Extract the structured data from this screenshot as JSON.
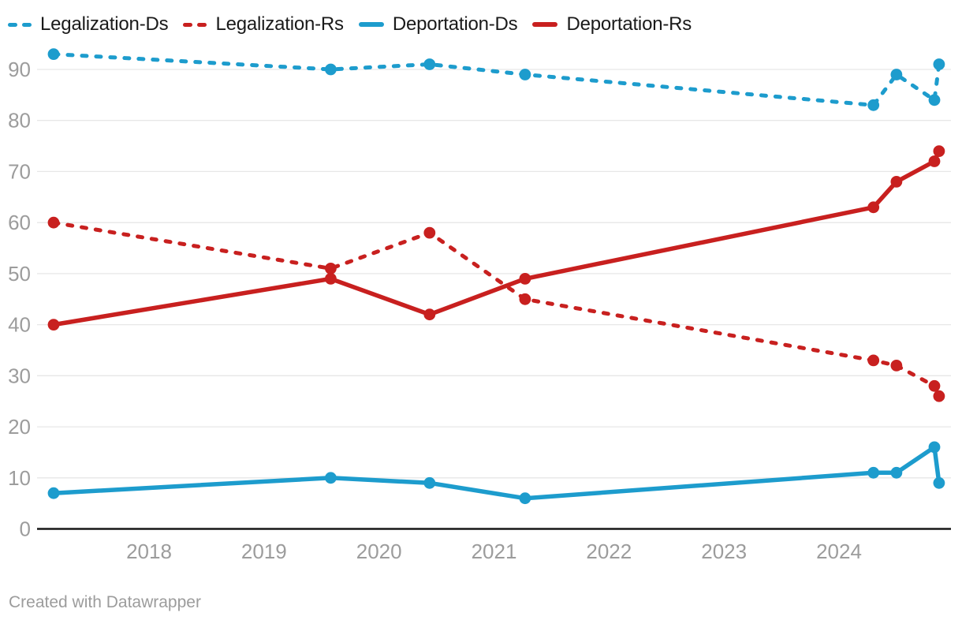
{
  "footer": {
    "credit": "Created with Datawrapper"
  },
  "colors": {
    "blue": "#1d9ccd",
    "red": "#c8201f",
    "grid": "#e7e7e7",
    "axis": "#161616",
    "tick_text": "#9c9c9c",
    "legend_text": "#1a1a1a",
    "background": "#ffffff"
  },
  "chart_data": {
    "type": "line",
    "title": "",
    "xlabel": "",
    "ylabel": "",
    "x": [
      2017.17,
      2019.58,
      2020.44,
      2021.27,
      2024.3,
      2024.5,
      2024.83,
      2024.87
    ],
    "x_ticks": [
      2018,
      2019,
      2020,
      2021,
      2022,
      2023,
      2024
    ],
    "y_ticks": [
      0,
      10,
      20,
      30,
      40,
      50,
      60,
      70,
      80,
      90
    ],
    "xlim": [
      2017.0,
      2024.97
    ],
    "ylim": [
      0,
      95
    ],
    "grid": "horizontal",
    "legend_position": "top",
    "series": [
      {
        "name": "Legalization-Ds",
        "color": "#1d9ccd",
        "line_style": "dashed",
        "values": [
          93,
          90,
          91,
          89,
          83,
          89,
          84,
          91
        ]
      },
      {
        "name": "Legalization-Rs",
        "color": "#c8201f",
        "line_style": "dashed",
        "values": [
          60,
          51,
          58,
          45,
          33,
          32,
          28,
          26
        ]
      },
      {
        "name": "Deportation-Ds",
        "color": "#1d9ccd",
        "line_style": "solid",
        "values": [
          7,
          10,
          9,
          6,
          11,
          11,
          16,
          9
        ]
      },
      {
        "name": "Deportation-Rs",
        "color": "#c8201f",
        "line_style": "solid",
        "values": [
          40,
          49,
          42,
          49,
          63,
          68,
          72,
          74
        ]
      }
    ]
  }
}
